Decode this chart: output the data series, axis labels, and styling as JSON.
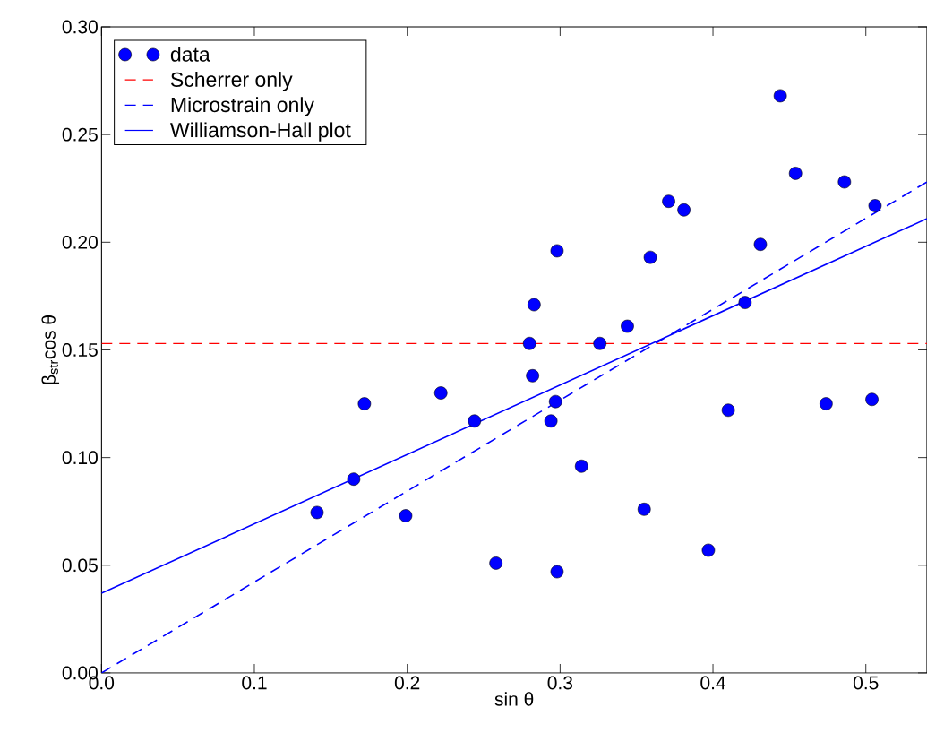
{
  "chart_data": {
    "type": "scatter",
    "xlabel": "sin θ",
    "ylabel": "β$_{str}$cos θ",
    "xlim": [
      0,
      0.54
    ],
    "ylim": [
      0,
      0.3
    ],
    "xticks": [
      {
        "value": 0,
        "label": "0.0"
      },
      {
        "value": 0.1,
        "label": "0.1"
      },
      {
        "value": 0.2,
        "label": "0.2"
      },
      {
        "value": 0.3,
        "label": "0.3"
      },
      {
        "value": 0.4,
        "label": "0.4"
      },
      {
        "value": 0.5,
        "label": "0.5"
      }
    ],
    "yticks": [
      {
        "value": 0,
        "label": "0.00"
      },
      {
        "value": 0.05,
        "label": "0.05"
      },
      {
        "value": 0.1,
        "label": "0.10"
      },
      {
        "value": 0.15,
        "label": "0.15"
      },
      {
        "value": 0.2,
        "label": "0.20"
      },
      {
        "value": 0.25,
        "label": "0.25"
      },
      {
        "value": 0.3,
        "label": "0.30"
      }
    ],
    "grid": false,
    "legend": "top left",
    "marker": "circle",
    "series": [
      {
        "name": "data",
        "color": "#0000ff",
        "x": [
          0.141,
          0.165,
          0.172,
          0.199,
          0.222,
          0.244,
          0.258,
          0.444,
          0.454,
          0.486,
          0.506,
          0.371,
          0.381,
          0.431,
          0.298,
          0.359,
          0.283,
          0.421,
          0.344,
          0.28,
          0.326,
          0.282,
          0.297,
          0.294,
          0.41,
          0.474,
          0.504,
          0.314,
          0.355,
          0.397,
          0.298
        ],
        "values": [
          0.0745,
          0.09,
          0.125,
          0.073,
          0.13,
          0.117,
          0.051,
          0.268,
          0.232,
          0.228,
          0.217,
          0.219,
          0.215,
          0.199,
          0.196,
          0.193,
          0.171,
          0.172,
          0.161,
          0.153,
          0.153,
          0.138,
          0.126,
          0.117,
          0.122,
          0.125,
          0.127,
          0.096,
          0.076,
          0.057,
          0.047
        ]
      },
      {
        "name": "Scherrer only",
        "type": "line",
        "marker": "none",
        "line_style": "dashed",
        "color": "#ff0000",
        "x": [
          0,
          0.54
        ],
        "values": [
          0.153,
          0.153
        ]
      },
      {
        "name": "Microstrain only",
        "type": "line",
        "marker": "none",
        "line_style": "dashed",
        "color": "#0000ff",
        "x": [
          0,
          0.54
        ],
        "values": [
          0,
          0.228
        ]
      },
      {
        "name": "Williamson-Hall plot",
        "type": "line",
        "marker": "none",
        "line_style": "solid",
        "color": "#0000ff",
        "x": [
          0,
          0.54
        ],
        "values": [
          0.037,
          0.211
        ]
      }
    ]
  }
}
